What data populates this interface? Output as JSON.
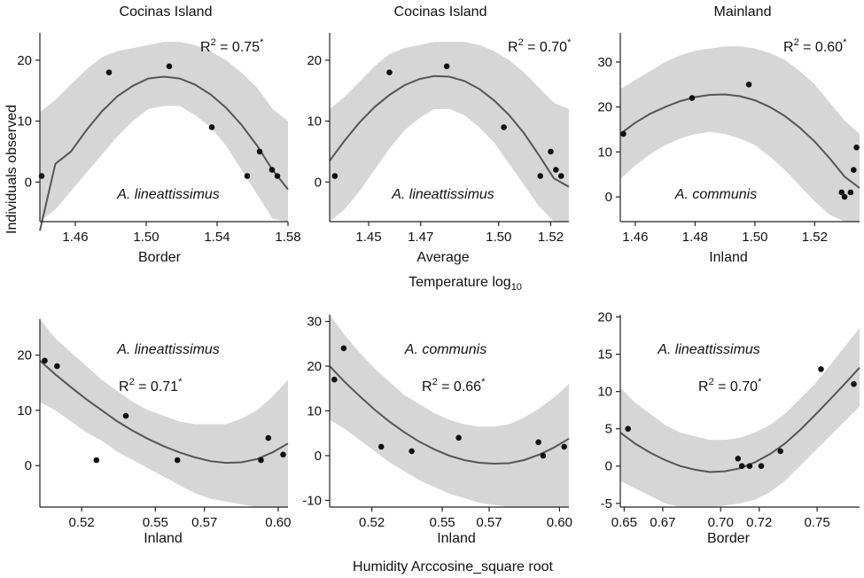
{
  "figure": {
    "ylabel": "Individuals observed",
    "top_xlabel_main": "Temperature log",
    "top_xlabel_sub": "10",
    "bottom_xlabel": "Humidity Arccosine_square root"
  },
  "chart_data": [
    {
      "type": "scatter",
      "title": "Cocinas Island",
      "xlabel": "Border",
      "species": "A. lineattissimus",
      "r2_label": "R",
      "r2_sup": "2",
      "r2_value": " = 0.75",
      "r2_star": "*",
      "xlim": [
        1.44,
        1.58
      ],
      "ylim": [
        -6.5,
        24.5
      ],
      "xticks": [
        1.46,
        1.5,
        1.54,
        1.58
      ],
      "xtick_labels": [
        "1.46",
        "1.50",
        "1.54",
        "1.58"
      ],
      "yticks": [
        0,
        10,
        20
      ],
      "ytick_labels": [
        "0",
        "10",
        "20"
      ],
      "points": [
        [
          1.441,
          1
        ],
        [
          1.479,
          18
        ],
        [
          1.513,
          19
        ],
        [
          1.537,
          9
        ],
        [
          1.557,
          1
        ],
        [
          1.564,
          5
        ],
        [
          1.571,
          2
        ],
        [
          1.574,
          1
        ]
      ],
      "fit": [
        -8.0,
        3.0,
        5.0,
        8.5,
        11.6,
        14.1,
        15.8,
        17.0,
        17.3,
        17.0,
        16.0,
        14.4,
        12.2,
        9.4,
        6.0,
        2.0,
        -1.2
      ],
      "band_upper": [
        11.5,
        13.5,
        16.0,
        18.5,
        20.5,
        21.5,
        22.0,
        22.5,
        23.0,
        23.0,
        22.5,
        21.5,
        20.0,
        18.0,
        15.5,
        12.0,
        10.0
      ],
      "band_lower": [
        -6.5,
        -4.5,
        -1.5,
        1.5,
        4.5,
        7.5,
        10.0,
        12.0,
        12.5,
        12.5,
        11.0,
        9.0,
        6.0,
        2.0,
        -2.0,
        -6.0,
        -6.5
      ]
    },
    {
      "type": "scatter",
      "title": "Cocinas Island",
      "xlabel": "Average",
      "species": "A. lineattissimus",
      "r2_label": "R",
      "r2_sup": "2",
      "r2_value": " = 0.70",
      "r2_star": "*",
      "xlim": [
        1.435,
        1.527
      ],
      "ylim": [
        -6.5,
        24.5
      ],
      "xticks": [
        1.45,
        1.47,
        1.5,
        1.52
      ],
      "xtick_labels": [
        "1.45",
        "1.47",
        "1.50",
        "1.52"
      ],
      "yticks": [
        0,
        10,
        20
      ],
      "ytick_labels": [
        "0",
        "10",
        "20"
      ],
      "points": [
        [
          1.437,
          1
        ],
        [
          1.458,
          18
        ],
        [
          1.48,
          19
        ],
        [
          1.502,
          9
        ],
        [
          1.516,
          1
        ],
        [
          1.52,
          5
        ],
        [
          1.522,
          2
        ],
        [
          1.524,
          1
        ]
      ],
      "fit": [
        3.5,
        6.8,
        9.8,
        12.3,
        14.3,
        15.9,
        16.9,
        17.4,
        17.3,
        16.6,
        15.3,
        13.4,
        11.0,
        8.0,
        4.4,
        0.6,
        -0.8
      ],
      "band_upper": [
        12.0,
        14.0,
        16.5,
        19.0,
        21.0,
        22.0,
        22.5,
        23.0,
        23.0,
        23.0,
        22.5,
        21.5,
        20.0,
        18.0,
        15.5,
        13.0,
        12.0
      ],
      "band_lower": [
        -6.5,
        -4.5,
        -1.5,
        2.0,
        5.5,
        8.5,
        10.5,
        12.0,
        12.0,
        11.0,
        9.0,
        6.5,
        3.0,
        -0.5,
        -4.0,
        -6.5,
        -6.5
      ]
    },
    {
      "type": "scatter",
      "title": "Mainland",
      "xlabel": "Inland",
      "species": "A. communis",
      "r2_label": "R",
      "r2_sup": "2",
      "r2_value": " = 0.60",
      "r2_star": "*",
      "xlim": [
        1.455,
        1.535
      ],
      "ylim": [
        -5.5,
        36.5
      ],
      "xticks": [
        1.46,
        1.48,
        1.5,
        1.52
      ],
      "xtick_labels": [
        "1.46",
        "1.48",
        "1.50",
        "1.52"
      ],
      "yticks": [
        0,
        10,
        20,
        30
      ],
      "ytick_labels": [
        "0",
        "10",
        "20",
        "30"
      ],
      "points": [
        [
          1.456,
          14
        ],
        [
          1.479,
          22
        ],
        [
          1.498,
          25
        ],
        [
          1.529,
          1
        ],
        [
          1.53,
          0
        ],
        [
          1.532,
          1
        ],
        [
          1.533,
          6
        ],
        [
          1.534,
          11
        ]
      ],
      "fit": [
        14.0,
        16.5,
        18.5,
        20.0,
        21.3,
        22.2,
        22.7,
        22.8,
        22.4,
        21.5,
        20.0,
        18.0,
        15.4,
        12.3,
        8.6,
        4.5,
        2.0
      ],
      "band_upper": [
        24.0,
        26.0,
        28.0,
        30.0,
        31.5,
        32.5,
        33.0,
        33.5,
        33.5,
        33.0,
        32.0,
        30.5,
        28.0,
        25.0,
        21.0,
        17.0,
        14.0
      ],
      "band_lower": [
        4.0,
        7.0,
        9.5,
        11.5,
        13.0,
        14.0,
        14.5,
        14.0,
        13.0,
        11.5,
        9.0,
        6.0,
        2.5,
        -1.0,
        -4.0,
        -5.5,
        -5.5
      ]
    },
    {
      "type": "scatter",
      "title": "",
      "xlabel": "Inland",
      "species": "A. lineattissimus",
      "r2_label": "R",
      "r2_sup": "2",
      "r2_value": " = 0.71",
      "r2_star": "*",
      "xlim": [
        0.503,
        0.604
      ],
      "ylim": [
        -7.5,
        26.5
      ],
      "xticks": [
        0.52,
        0.55,
        0.57,
        0.6
      ],
      "xtick_labels": [
        "0.52",
        "0.55",
        "0.57",
        "0.60"
      ],
      "yticks": [
        0,
        10,
        20
      ],
      "ytick_labels": [
        "0",
        "10",
        "20"
      ],
      "points": [
        [
          0.505,
          19
        ],
        [
          0.51,
          18
        ],
        [
          0.526,
          1
        ],
        [
          0.538,
          9
        ],
        [
          0.559,
          1
        ],
        [
          0.593,
          1
        ],
        [
          0.596,
          5
        ],
        [
          0.602,
          2
        ]
      ],
      "fit": [
        19.0,
        16.5,
        14.2,
        12.0,
        10.0,
        8.0,
        6.3,
        4.8,
        3.5,
        2.4,
        1.5,
        0.8,
        0.5,
        0.6,
        1.2,
        2.4,
        4.0
      ],
      "band_upper": [
        26.5,
        23.0,
        20.5,
        18.0,
        15.5,
        13.5,
        11.5,
        10.0,
        9.0,
        8.0,
        7.5,
        7.5,
        7.5,
        8.5,
        10.0,
        12.5,
        15.5
      ],
      "band_lower": [
        11.5,
        10.0,
        8.0,
        6.0,
        4.5,
        2.5,
        1.0,
        -0.5,
        -2.0,
        -3.5,
        -5.0,
        -6.0,
        -6.5,
        -7.0,
        -7.5,
        -7.5,
        -7.5
      ]
    },
    {
      "type": "scatter",
      "title": "",
      "xlabel": "Inland",
      "species": "A. communis",
      "r2_label": "R",
      "r2_sup": "2",
      "r2_value": " = 0.66",
      "r2_star": "*",
      "xlim": [
        0.502,
        0.604
      ],
      "ylim": [
        -11.5,
        31.5
      ],
      "xticks": [
        0.52,
        0.55,
        0.57,
        0.6
      ],
      "xtick_labels": [
        "0.52",
        "0.55",
        "0.57",
        "0.60"
      ],
      "yticks": [
        -10,
        0,
        10,
        20,
        30
      ],
      "ytick_labels": [
        "-10",
        "0",
        "10",
        "20",
        "30"
      ],
      "points": [
        [
          0.504,
          17
        ],
        [
          0.508,
          24
        ],
        [
          0.524,
          2
        ],
        [
          0.537,
          1
        ],
        [
          0.557,
          4
        ],
        [
          0.591,
          3
        ],
        [
          0.593,
          0
        ],
        [
          0.602,
          2
        ]
      ],
      "fit": [
        20.0,
        16.5,
        13.3,
        10.3,
        7.6,
        5.2,
        3.1,
        1.4,
        0.0,
        -1.0,
        -1.6,
        -1.8,
        -1.7,
        -1.0,
        0.2,
        1.8,
        3.8
      ],
      "band_upper": [
        31.5,
        27.0,
        23.0,
        19.5,
        16.5,
        13.5,
        11.5,
        9.5,
        8.0,
        7.0,
        6.5,
        6.5,
        7.0,
        8.5,
        10.5,
        13.0,
        16.0
      ],
      "band_lower": [
        8.0,
        6.0,
        3.5,
        1.0,
        -1.5,
        -3.5,
        -5.5,
        -7.0,
        -8.5,
        -9.5,
        -10.5,
        -11.0,
        -11.5,
        -11.5,
        -11.5,
        -11.5,
        -11.5
      ]
    },
    {
      "type": "scatter",
      "title": "",
      "xlabel": "Border",
      "species": "A. lineattissimus",
      "r2_label": "R",
      "r2_sup": "2",
      "r2_value": " = 0.70",
      "r2_star": "*",
      "xlim": [
        0.648,
        0.772
      ],
      "ylim": [
        -5.5,
        20.3
      ],
      "xticks": [
        0.65,
        0.67,
        0.7,
        0.72,
        0.75
      ],
      "xtick_labels": [
        "0.65",
        "0.67",
        "0.70",
        "0.72",
        "0.75"
      ],
      "yticks": [
        -5,
        0,
        5,
        10,
        15,
        20
      ],
      "ytick_labels": [
        "-5",
        "0",
        "5",
        "10",
        "15",
        "20"
      ],
      "points": [
        [
          0.652,
          5
        ],
        [
          0.709,
          1
        ],
        [
          0.711,
          0
        ],
        [
          0.715,
          0
        ],
        [
          0.721,
          0
        ],
        [
          0.731,
          2
        ],
        [
          0.752,
          13
        ],
        [
          0.769,
          11
        ]
      ],
      "fit": [
        4.5,
        3.0,
        1.8,
        0.8,
        0.0,
        -0.5,
        -0.8,
        -0.7,
        -0.3,
        0.5,
        1.6,
        3.0,
        4.8,
        6.8,
        8.9,
        11.0,
        13.2
      ],
      "band_upper": [
        10.5,
        8.5,
        7.0,
        5.5,
        4.5,
        4.0,
        3.5,
        3.5,
        3.8,
        4.5,
        5.5,
        7.0,
        9.0,
        11.0,
        13.5,
        16.0,
        18.5
      ],
      "band_lower": [
        -2.0,
        -3.0,
        -4.0,
        -5.0,
        -5.5,
        -5.5,
        -5.5,
        -5.3,
        -5.0,
        -4.5,
        -3.5,
        -2.0,
        0.0,
        2.0,
        4.0,
        6.0,
        8.0
      ]
    }
  ]
}
